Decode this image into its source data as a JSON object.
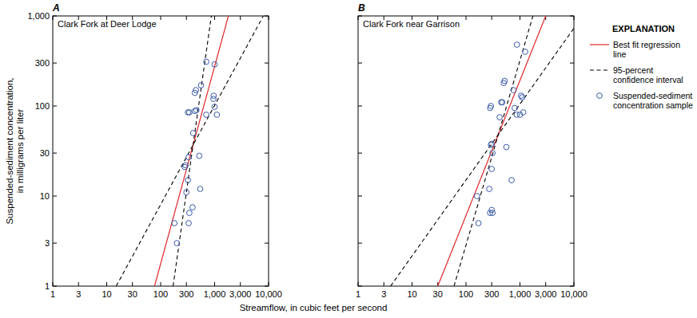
{
  "chart_data": [
    {
      "type": "scatter",
      "title": "A",
      "subtitle": "Clark Fork at Deer Lodge",
      "x_label": "Streamflow, in cubic feet per second",
      "y_label": "Suspended-sediment concentration, in milligrams per liter",
      "log": true,
      "grid": false,
      "legend": "right",
      "legend_title": "EXPLANATION",
      "xlim": [
        1,
        10000
      ],
      "ylim": [
        1,
        1000
      ],
      "xticks": [
        1,
        3,
        10,
        30,
        100,
        300,
        {
          "value": 1000,
          "label": "1,000"
        },
        {
          "value": 3000,
          "label": "3,000"
        },
        {
          "value": 10000,
          "label": "10,000"
        }
      ],
      "yticks": [
        1,
        3,
        10,
        30,
        100,
        300,
        {
          "value": 1000,
          "label": "1,000"
        }
      ],
      "series": [
        {
          "name": "Best fit regression line",
          "type": "line",
          "line_style": "solid",
          "color": "#e3262b",
          "x": [
            77,
            1800
          ],
          "values": [
            1,
            1000
          ]
        },
        {
          "name": "95-percent confidence interval",
          "type": "line",
          "line_style": "dashed",
          "color": "#000000",
          "x": [
            15,
            8000
          ],
          "values": [
            1,
            1000
          ]
        },
        {
          "type": "line",
          "line_style": "dashed",
          "color": "#000000",
          "x": [
            170,
            870
          ],
          "values": [
            1,
            1000
          ]
        },
        {
          "name": "Suspended-sediment concentration sample",
          "type": "scatter",
          "marker": "circle",
          "color": "#3a5ba8",
          "x": [
            700,
            1000,
            560,
            450,
            430,
            960,
            950,
            320,
            340,
            430,
            460,
            700,
            1000,
            1100,
            400,
            520,
            330,
            290,
            280,
            320,
            540,
            300,
            390,
            340,
            180,
            330,
            200
          ],
          "values": [
            310,
            290,
            170,
            150,
            140,
            130,
            120,
            85,
            85,
            88,
            90,
            80,
            98,
            80,
            50,
            28,
            27,
            22,
            21,
            15,
            12,
            11,
            7.5,
            6.5,
            5,
            5,
            3
          ]
        }
      ]
    },
    {
      "type": "scatter",
      "title": "B",
      "subtitle": "Clark Fork near Garrison",
      "log": true,
      "grid": false,
      "tick_labels": "x",
      "xlim": [
        1,
        10000
      ],
      "ylim": [
        1,
        1000
      ],
      "xticks": [
        1,
        3,
        10,
        30,
        100,
        300,
        {
          "value": 1000,
          "label": "1,000"
        },
        {
          "value": 3000,
          "label": "3,000"
        },
        {
          "value": 10000,
          "label": "10,000"
        }
      ],
      "yticks": [
        1,
        3,
        10,
        30,
        100,
        300,
        1000
      ],
      "series": [
        {
          "type": "line",
          "line_style": "solid",
          "color": "#e3262b",
          "x": [
            30,
            3000
          ],
          "values": [
            1,
            1000
          ]
        },
        {
          "type": "line",
          "line_style": "dashed",
          "color": "#000000",
          "x": [
            4,
            10000
          ],
          "values": [
            1,
            730
          ]
        },
        {
          "type": "line",
          "line_style": "dashed",
          "color": "#000000",
          "x": [
            60,
            1740
          ],
          "values": [
            1,
            1000
          ]
        },
        {
          "type": "scatter",
          "marker": "circle",
          "color": "#3a5ba8",
          "x": [
            880,
            1250,
            520,
            500,
            760,
            1050,
            1100,
            450,
            470,
            280,
            290,
            420,
            870,
            1000,
            1150,
            800,
            560,
            300,
            290,
            310,
            300,
            700,
            270,
            160,
            300,
            310,
            280,
            170
          ],
          "values": [
            480,
            400,
            190,
            180,
            150,
            130,
            125,
            110,
            110,
            95,
            100,
            75,
            80,
            80,
            85,
            95,
            35,
            38,
            37,
            30,
            20,
            15,
            12,
            10,
            7,
            6.5,
            6.5,
            5
          ]
        }
      ]
    }
  ]
}
